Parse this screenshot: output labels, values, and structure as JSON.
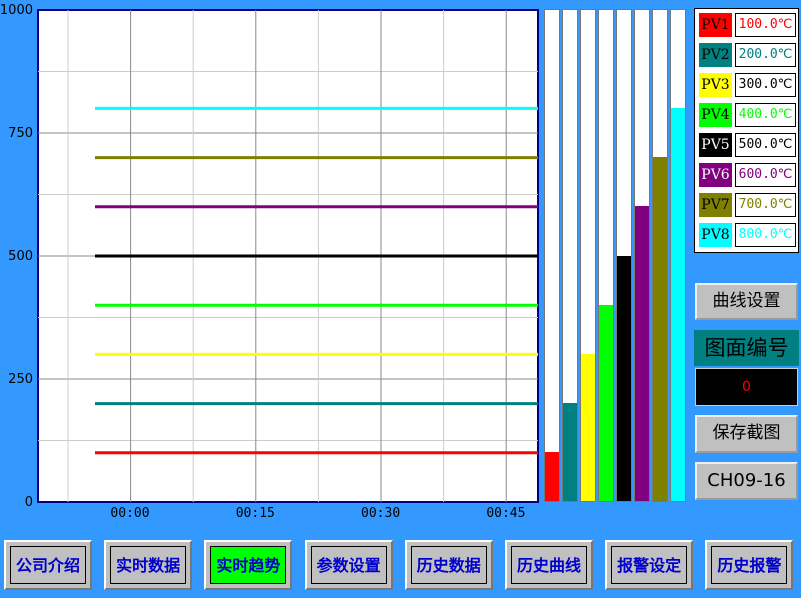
{
  "chart_data": {
    "type": "line",
    "ylim": [
      0,
      1000
    ],
    "y_ticks": [
      "0",
      "250",
      "500",
      "750",
      "1000"
    ],
    "x_ticks": [
      "00:00",
      "00:15",
      "00:30",
      "00:45"
    ],
    "grid": true,
    "series": [
      {
        "name": "PV1",
        "value": 100,
        "color": "#ff0000"
      },
      {
        "name": "PV2",
        "value": 200,
        "color": "#008080"
      },
      {
        "name": "PV3",
        "value": 300,
        "color": "#ffff00"
      },
      {
        "name": "PV4",
        "value": 400,
        "color": "#00ff00"
      },
      {
        "name": "PV5",
        "value": 500,
        "color": "#000000"
      },
      {
        "name": "PV6",
        "value": 600,
        "color": "#800080"
      },
      {
        "name": "PV7",
        "value": 700,
        "color": "#808000"
      },
      {
        "name": "PV8",
        "value": 800,
        "color": "#00ffff"
      }
    ]
  },
  "legend": [
    {
      "tag": "PV1",
      "value": "100.0℃",
      "bg": "#ff0000",
      "tagColor": "#000",
      "valColor": "#ff0000"
    },
    {
      "tag": "PV2",
      "value": "200.0℃",
      "bg": "#008080",
      "tagColor": "#000",
      "valColor": "#008080"
    },
    {
      "tag": "PV3",
      "value": "300.0℃",
      "bg": "#ffff00",
      "tagColor": "#000",
      "valColor": "#000000"
    },
    {
      "tag": "PV4",
      "value": "400.0℃",
      "bg": "#00ff00",
      "tagColor": "#000",
      "valColor": "#00ff00"
    },
    {
      "tag": "PV5",
      "value": "500.0℃",
      "bg": "#000000",
      "tagColor": "#fff",
      "valColor": "#000000"
    },
    {
      "tag": "PV6",
      "value": "600.0℃",
      "bg": "#800080",
      "tagColor": "#fff",
      "valColor": "#800080"
    },
    {
      "tag": "PV7",
      "value": "700.0℃",
      "bg": "#808000",
      "tagColor": "#000",
      "valColor": "#808000"
    },
    {
      "tag": "PV8",
      "value": "800.0℃",
      "bg": "#00ffff",
      "tagColor": "#000",
      "valColor": "#00ffff"
    }
  ],
  "side": {
    "curve_settings": "曲线设置",
    "screen_number_label": "图面编号",
    "screen_number": "0",
    "save_screenshot": "保存截图",
    "channel": "CH09-16"
  },
  "nav": [
    "公司介绍",
    "实时数据",
    "实时趋势",
    "参数设置",
    "历史数据",
    "历史曲线",
    "报警设定",
    "历史报警"
  ],
  "nav_active": 2
}
